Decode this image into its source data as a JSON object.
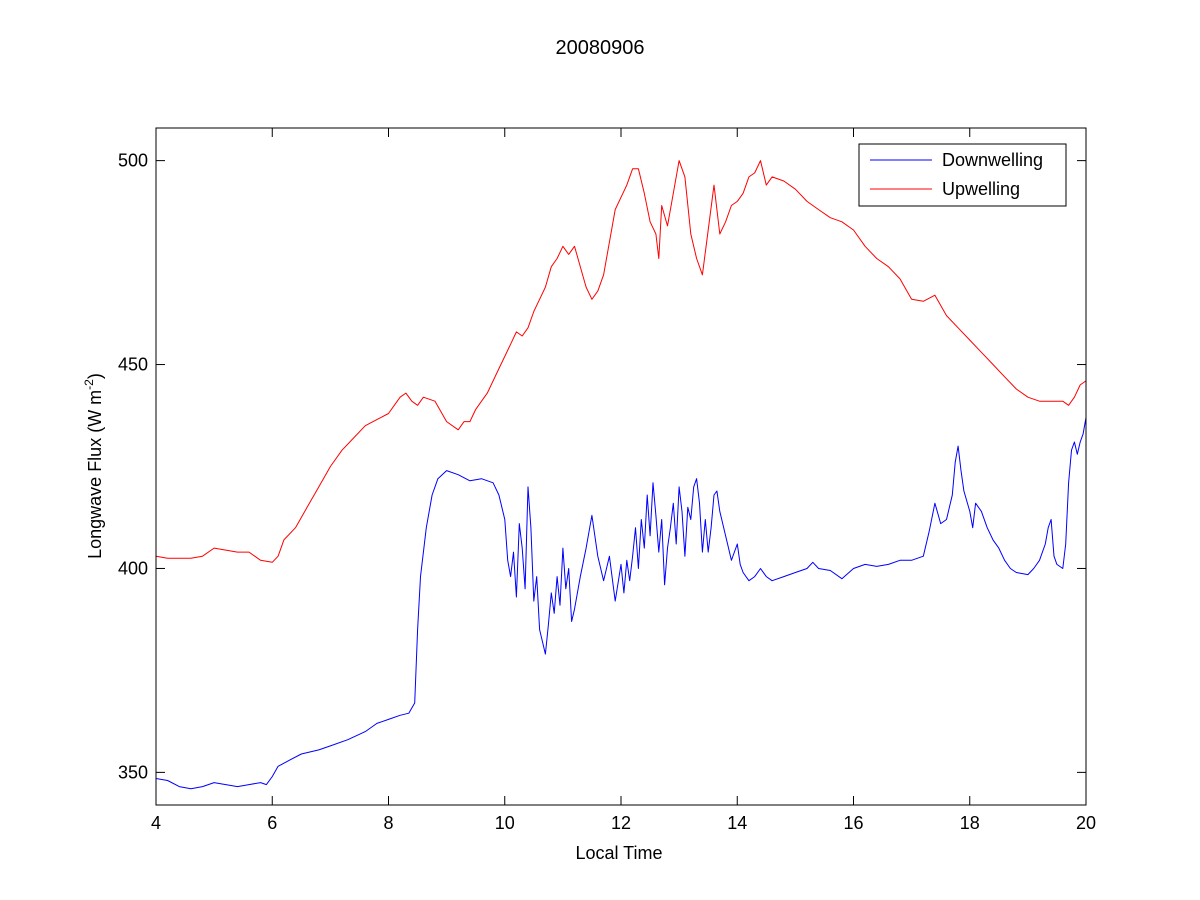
{
  "chart_data": {
    "type": "line",
    "title": "20080906",
    "xlabel": "Local Time",
    "ylabel": {
      "main": "Longwave Flux (W m",
      "superscript": "-2",
      "close": ")"
    },
    "xlim": [
      4,
      20
    ],
    "ylim": [
      342,
      508
    ],
    "xticks": [
      4,
      6,
      8,
      10,
      12,
      14,
      16,
      18,
      20
    ],
    "yticks": [
      350,
      400,
      450,
      500
    ],
    "grid": false,
    "legend_position": "top-right",
    "series": [
      {
        "name": "Downwelling",
        "color": "#0000ff",
        "points": [
          [
            4.0,
            348.5
          ],
          [
            4.2,
            348
          ],
          [
            4.4,
            346.5
          ],
          [
            4.6,
            346
          ],
          [
            4.8,
            346.5
          ],
          [
            5.0,
            347.5
          ],
          [
            5.2,
            347
          ],
          [
            5.4,
            346.5
          ],
          [
            5.6,
            347
          ],
          [
            5.8,
            347.5
          ],
          [
            5.9,
            347
          ],
          [
            6.0,
            349
          ],
          [
            6.1,
            351.5
          ],
          [
            6.3,
            353
          ],
          [
            6.5,
            354.5
          ],
          [
            6.8,
            355.5
          ],
          [
            7.0,
            356.5
          ],
          [
            7.3,
            358
          ],
          [
            7.6,
            360
          ],
          [
            7.8,
            362
          ],
          [
            8.0,
            363
          ],
          [
            8.2,
            364
          ],
          [
            8.35,
            364.5
          ],
          [
            8.45,
            367
          ],
          [
            8.5,
            385
          ],
          [
            8.55,
            398
          ],
          [
            8.65,
            410
          ],
          [
            8.75,
            418
          ],
          [
            8.85,
            422
          ],
          [
            9.0,
            424
          ],
          [
            9.2,
            423
          ],
          [
            9.4,
            421.5
          ],
          [
            9.6,
            422
          ],
          [
            9.8,
            421
          ],
          [
            9.9,
            418
          ],
          [
            10.0,
            412
          ],
          [
            10.05,
            402
          ],
          [
            10.1,
            398
          ],
          [
            10.15,
            404
          ],
          [
            10.2,
            393
          ],
          [
            10.25,
            411
          ],
          [
            10.3,
            405
          ],
          [
            10.35,
            395
          ],
          [
            10.4,
            420
          ],
          [
            10.45,
            410
          ],
          [
            10.5,
            392
          ],
          [
            10.55,
            398
          ],
          [
            10.6,
            385
          ],
          [
            10.65,
            382
          ],
          [
            10.7,
            379
          ],
          [
            10.75,
            386
          ],
          [
            10.8,
            394
          ],
          [
            10.85,
            389
          ],
          [
            10.9,
            398
          ],
          [
            10.95,
            391
          ],
          [
            11.0,
            405
          ],
          [
            11.05,
            395
          ],
          [
            11.1,
            400
          ],
          [
            11.15,
            387
          ],
          [
            11.2,
            390
          ],
          [
            11.3,
            398
          ],
          [
            11.4,
            405
          ],
          [
            11.5,
            413
          ],
          [
            11.6,
            403
          ],
          [
            11.7,
            397
          ],
          [
            11.8,
            403
          ],
          [
            11.9,
            392
          ],
          [
            12.0,
            401
          ],
          [
            12.05,
            394
          ],
          [
            12.1,
            402
          ],
          [
            12.15,
            397
          ],
          [
            12.2,
            403
          ],
          [
            12.25,
            410
          ],
          [
            12.3,
            400
          ],
          [
            12.35,
            412
          ],
          [
            12.4,
            405
          ],
          [
            12.45,
            418
          ],
          [
            12.5,
            408
          ],
          [
            12.55,
            421
          ],
          [
            12.6,
            413
          ],
          [
            12.65,
            404
          ],
          [
            12.7,
            412
          ],
          [
            12.75,
            396
          ],
          [
            12.8,
            405
          ],
          [
            12.85,
            410
          ],
          [
            12.9,
            416
          ],
          [
            12.95,
            406
          ],
          [
            13.0,
            420
          ],
          [
            13.05,
            414
          ],
          [
            13.1,
            403
          ],
          [
            13.15,
            415
          ],
          [
            13.2,
            412
          ],
          [
            13.25,
            420
          ],
          [
            13.3,
            422
          ],
          [
            13.35,
            416
          ],
          [
            13.4,
            404
          ],
          [
            13.45,
            412
          ],
          [
            13.5,
            404
          ],
          [
            13.55,
            410
          ],
          [
            13.6,
            418
          ],
          [
            13.65,
            419
          ],
          [
            13.7,
            414
          ],
          [
            13.8,
            408
          ],
          [
            13.9,
            402
          ],
          [
            14.0,
            406
          ],
          [
            14.05,
            401
          ],
          [
            14.1,
            399
          ],
          [
            14.2,
            397
          ],
          [
            14.3,
            398
          ],
          [
            14.4,
            400
          ],
          [
            14.5,
            398
          ],
          [
            14.6,
            397
          ],
          [
            14.8,
            398
          ],
          [
            15.0,
            399
          ],
          [
            15.2,
            400
          ],
          [
            15.3,
            401.5
          ],
          [
            15.4,
            400
          ],
          [
            15.6,
            399.5
          ],
          [
            15.8,
            397.5
          ],
          [
            16.0,
            400
          ],
          [
            16.2,
            401
          ],
          [
            16.4,
            400.5
          ],
          [
            16.6,
            401
          ],
          [
            16.8,
            402
          ],
          [
            17.0,
            402
          ],
          [
            17.2,
            403
          ],
          [
            17.3,
            409
          ],
          [
            17.4,
            416
          ],
          [
            17.5,
            411
          ],
          [
            17.6,
            412
          ],
          [
            17.7,
            418
          ],
          [
            17.75,
            426
          ],
          [
            17.8,
            430
          ],
          [
            17.85,
            424
          ],
          [
            17.9,
            419
          ],
          [
            18.0,
            414
          ],
          [
            18.05,
            410
          ],
          [
            18.1,
            416
          ],
          [
            18.2,
            414
          ],
          [
            18.3,
            410
          ],
          [
            18.4,
            407
          ],
          [
            18.5,
            405
          ],
          [
            18.6,
            402
          ],
          [
            18.7,
            400
          ],
          [
            18.8,
            399
          ],
          [
            19.0,
            398.5
          ],
          [
            19.1,
            400
          ],
          [
            19.2,
            402
          ],
          [
            19.3,
            406
          ],
          [
            19.35,
            410
          ],
          [
            19.4,
            412
          ],
          [
            19.45,
            403
          ],
          [
            19.5,
            401
          ],
          [
            19.6,
            400
          ],
          [
            19.65,
            406
          ],
          [
            19.7,
            421
          ],
          [
            19.75,
            429
          ],
          [
            19.8,
            431
          ],
          [
            19.85,
            428
          ],
          [
            19.9,
            431
          ],
          [
            19.95,
            433
          ],
          [
            20.0,
            437
          ]
        ]
      },
      {
        "name": "Upwelling",
        "color": "#ff0000",
        "points": [
          [
            4.0,
            403
          ],
          [
            4.2,
            402.5
          ],
          [
            4.4,
            402.5
          ],
          [
            4.6,
            402.5
          ],
          [
            4.8,
            403
          ],
          [
            5.0,
            405
          ],
          [
            5.2,
            404.5
          ],
          [
            5.4,
            404
          ],
          [
            5.6,
            404
          ],
          [
            5.8,
            402
          ],
          [
            6.0,
            401.5
          ],
          [
            6.1,
            403
          ],
          [
            6.2,
            407
          ],
          [
            6.4,
            410
          ],
          [
            6.6,
            415
          ],
          [
            6.8,
            420
          ],
          [
            7.0,
            425
          ],
          [
            7.2,
            429
          ],
          [
            7.4,
            432
          ],
          [
            7.6,
            435
          ],
          [
            7.8,
            436.5
          ],
          [
            8.0,
            438
          ],
          [
            8.1,
            440
          ],
          [
            8.2,
            442
          ],
          [
            8.3,
            443
          ],
          [
            8.4,
            441
          ],
          [
            8.5,
            440
          ],
          [
            8.6,
            442
          ],
          [
            8.8,
            441
          ],
          [
            9.0,
            436
          ],
          [
            9.2,
            434
          ],
          [
            9.3,
            436
          ],
          [
            9.4,
            436
          ],
          [
            9.5,
            439
          ],
          [
            9.6,
            441
          ],
          [
            9.7,
            443
          ],
          [
            9.8,
            446
          ],
          [
            9.9,
            449
          ],
          [
            10.0,
            452
          ],
          [
            10.1,
            455
          ],
          [
            10.2,
            458
          ],
          [
            10.3,
            457
          ],
          [
            10.4,
            459
          ],
          [
            10.5,
            463
          ],
          [
            10.6,
            466
          ],
          [
            10.7,
            469
          ],
          [
            10.8,
            474
          ],
          [
            10.9,
            476
          ],
          [
            11.0,
            479
          ],
          [
            11.1,
            477
          ],
          [
            11.2,
            479
          ],
          [
            11.3,
            474
          ],
          [
            11.4,
            469
          ],
          [
            11.5,
            466
          ],
          [
            11.6,
            468
          ],
          [
            11.7,
            472
          ],
          [
            11.8,
            480
          ],
          [
            11.9,
            488
          ],
          [
            12.0,
            491
          ],
          [
            12.1,
            494
          ],
          [
            12.2,
            498
          ],
          [
            12.3,
            498
          ],
          [
            12.4,
            492
          ],
          [
            12.5,
            485
          ],
          [
            12.6,
            482
          ],
          [
            12.65,
            476
          ],
          [
            12.7,
            489
          ],
          [
            12.8,
            484
          ],
          [
            12.9,
            492
          ],
          [
            13.0,
            500
          ],
          [
            13.1,
            496
          ],
          [
            13.2,
            482
          ],
          [
            13.3,
            476
          ],
          [
            13.4,
            472
          ],
          [
            13.5,
            483
          ],
          [
            13.6,
            494
          ],
          [
            13.7,
            482
          ],
          [
            13.8,
            485
          ],
          [
            13.9,
            489
          ],
          [
            14.0,
            490
          ],
          [
            14.1,
            492
          ],
          [
            14.2,
            496
          ],
          [
            14.3,
            497
          ],
          [
            14.4,
            500
          ],
          [
            14.5,
            494
          ],
          [
            14.6,
            496
          ],
          [
            14.8,
            495
          ],
          [
            15.0,
            493
          ],
          [
            15.2,
            490
          ],
          [
            15.4,
            488
          ],
          [
            15.6,
            486
          ],
          [
            15.8,
            485
          ],
          [
            16.0,
            483
          ],
          [
            16.2,
            479
          ],
          [
            16.4,
            476
          ],
          [
            16.6,
            474
          ],
          [
            16.8,
            471
          ],
          [
            17.0,
            466
          ],
          [
            17.2,
            465.5
          ],
          [
            17.4,
            467
          ],
          [
            17.6,
            462
          ],
          [
            17.8,
            459
          ],
          [
            18.0,
            456
          ],
          [
            18.2,
            453
          ],
          [
            18.4,
            450
          ],
          [
            18.6,
            447
          ],
          [
            18.8,
            444
          ],
          [
            19.0,
            442
          ],
          [
            19.2,
            441
          ],
          [
            19.4,
            441
          ],
          [
            19.6,
            441
          ],
          [
            19.7,
            440
          ],
          [
            19.8,
            442
          ],
          [
            19.9,
            445
          ],
          [
            20.0,
            446
          ]
        ]
      }
    ]
  }
}
